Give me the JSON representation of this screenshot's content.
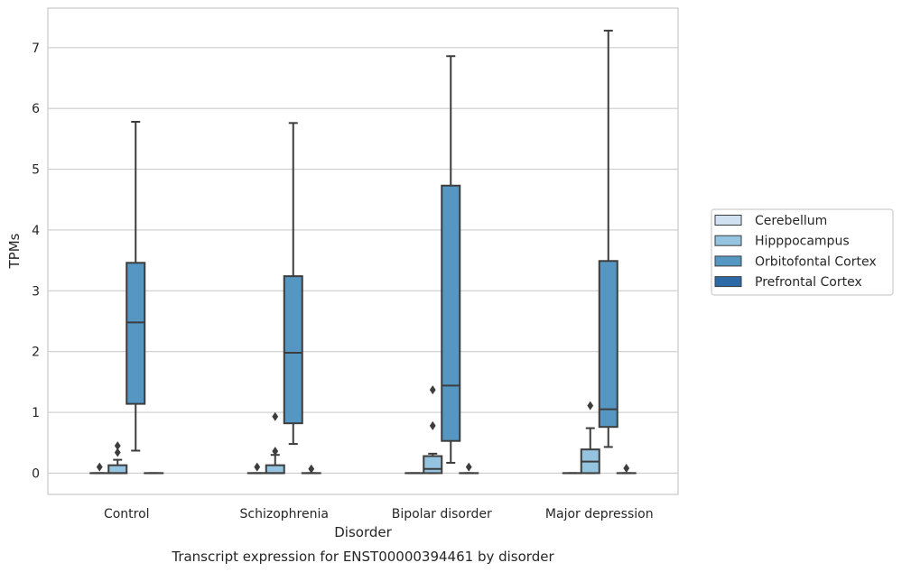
{
  "chart_data": {
    "type": "box",
    "caption": "Transcript expression for ENST00000394461 by disorder",
    "xlabel": "Disorder",
    "ylabel": "TPMs",
    "ylim": [
      -0.35,
      7.65
    ],
    "yticks": [
      0,
      1,
      2,
      3,
      4,
      5,
      6,
      7
    ],
    "grid": true,
    "legend_position": "right",
    "categories": [
      "Control",
      "Schizophrenia",
      "Bipolar disorder",
      "Major depression"
    ],
    "series": [
      {
        "name": "Cerebellum",
        "color": "#d0e1f2",
        "boxes": [
          {
            "q1": 0,
            "median": 0,
            "q3": 0,
            "whisker_low": 0,
            "whisker_high": 0,
            "outliers": [
              0.1
            ]
          },
          {
            "q1": 0,
            "median": 0,
            "q3": 0,
            "whisker_low": 0,
            "whisker_high": 0,
            "outliers": [
              0.1
            ]
          },
          {
            "q1": 0,
            "median": 0,
            "q3": 0,
            "whisker_low": 0,
            "whisker_high": 0,
            "outliers": []
          },
          {
            "q1": 0,
            "median": 0,
            "q3": 0,
            "whisker_low": 0,
            "whisker_high": 0,
            "outliers": []
          }
        ]
      },
      {
        "name": "Hipppocampus",
        "color": "#94c4df",
        "boxes": [
          {
            "q1": 0,
            "median": 0,
            "q3": 0.13,
            "whisker_low": 0,
            "whisker_high": 0.22,
            "outliers": [
              0.34,
              0.45
            ]
          },
          {
            "q1": 0,
            "median": 0,
            "q3": 0.13,
            "whisker_low": 0,
            "whisker_high": 0.3,
            "outliers": [
              0.36,
              0.93
            ]
          },
          {
            "q1": 0,
            "median": 0.07,
            "q3": 0.28,
            "whisker_low": 0,
            "whisker_high": 0.32,
            "outliers": [
              0.78,
              1.37
            ]
          },
          {
            "q1": 0,
            "median": 0.19,
            "q3": 0.39,
            "whisker_low": 0,
            "whisker_high": 0.74,
            "outliers": [
              1.11
            ]
          }
        ]
      },
      {
        "name": "Orbitofontal Cortex",
        "color": "#5596c3",
        "boxes": [
          {
            "q1": 1.14,
            "median": 2.48,
            "q3": 3.46,
            "whisker_low": 0.37,
            "whisker_high": 5.78,
            "outliers": []
          },
          {
            "q1": 0.82,
            "median": 1.98,
            "q3": 3.24,
            "whisker_low": 0.48,
            "whisker_high": 5.76,
            "outliers": []
          },
          {
            "q1": 0.53,
            "median": 1.44,
            "q3": 4.73,
            "whisker_low": 0.17,
            "whisker_high": 6.86,
            "outliers": []
          },
          {
            "q1": 0.76,
            "median": 1.05,
            "q3": 3.49,
            "whisker_low": 0.43,
            "whisker_high": 7.28,
            "outliers": []
          }
        ]
      },
      {
        "name": "Prefrontal Cortex",
        "color": "#2c6aa7",
        "boxes": [
          {
            "q1": 0,
            "median": 0,
            "q3": 0,
            "whisker_low": 0,
            "whisker_high": 0,
            "outliers": []
          },
          {
            "q1": 0,
            "median": 0,
            "q3": 0,
            "whisker_low": 0,
            "whisker_high": 0,
            "outliers": [
              0.07
            ]
          },
          {
            "q1": 0,
            "median": 0,
            "q3": 0,
            "whisker_low": 0,
            "whisker_high": 0,
            "outliers": [
              0.1
            ]
          },
          {
            "q1": 0,
            "median": 0,
            "q3": 0,
            "whisker_low": 0,
            "whisker_high": 0,
            "outliers": [
              0.08
            ]
          }
        ]
      }
    ]
  }
}
